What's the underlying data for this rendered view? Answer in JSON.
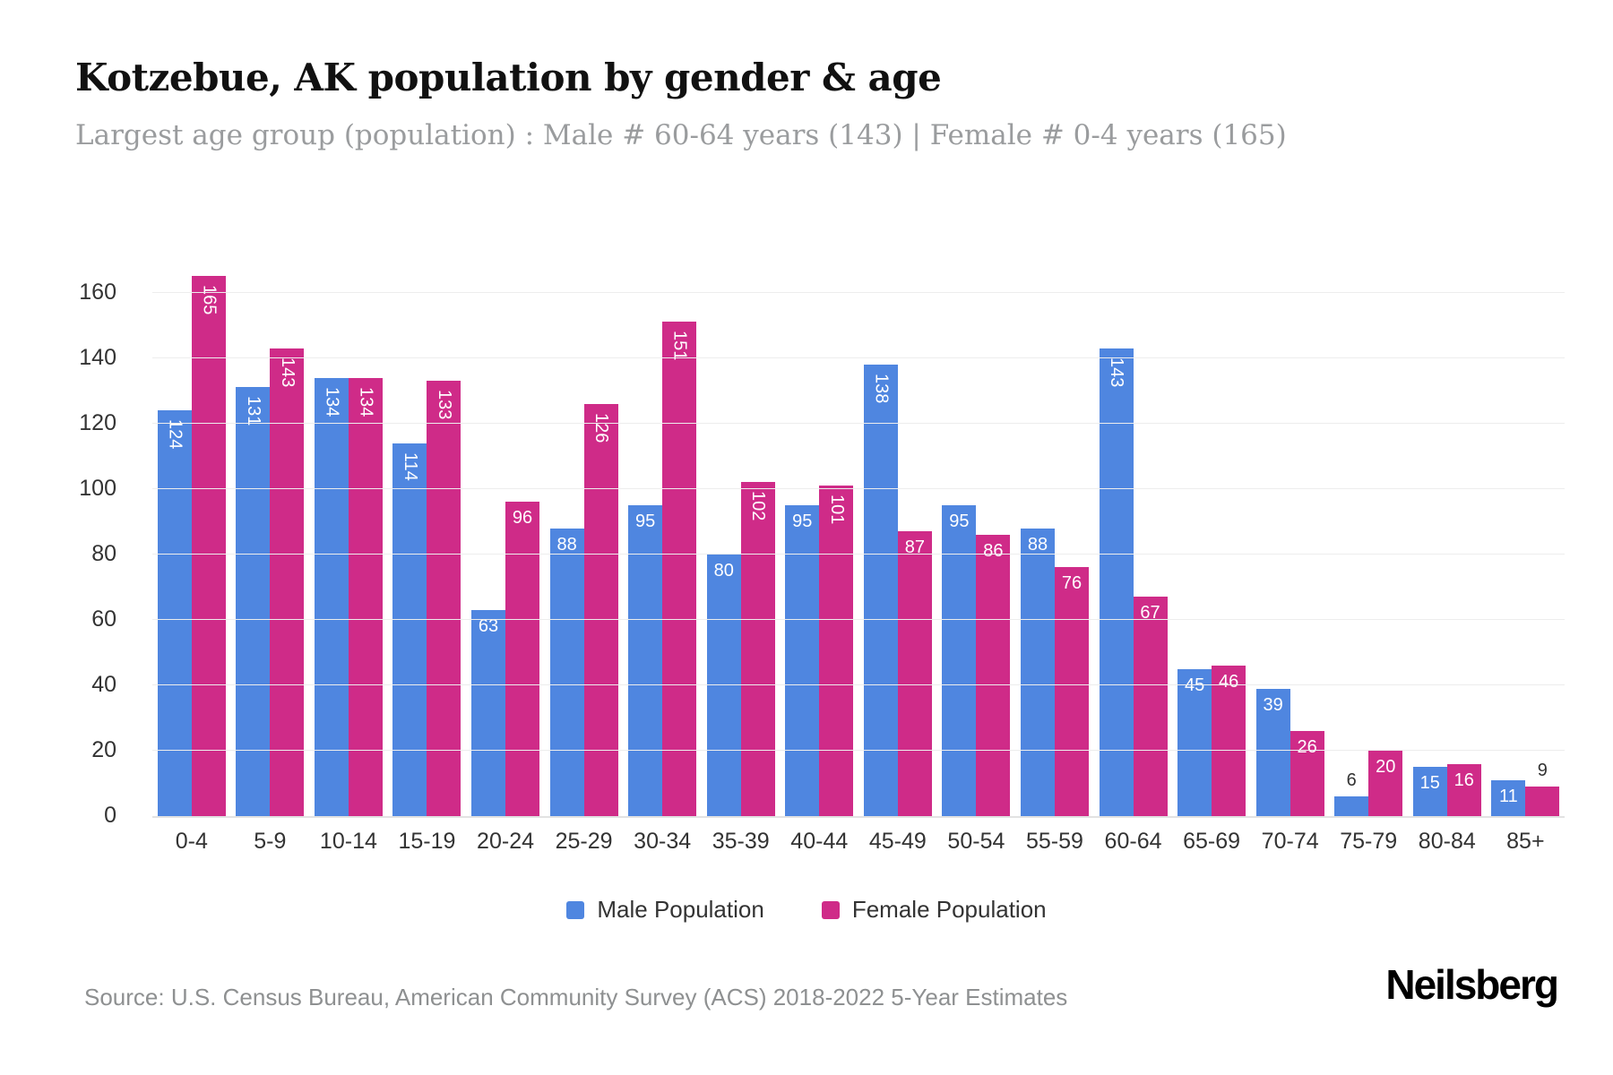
{
  "title": "Kotzebue, AK population by gender & age",
  "subtitle": "Largest age group (population) : Male # 60-64 years (143) | Female # 0-4 years (165)",
  "source": "Source: U.S. Census Bureau, American Community Survey (ACS) 2018-2022 5-Year Estimates",
  "brand": "Neilsberg",
  "colors": {
    "male": "#4f86e0",
    "female": "#cf2b88",
    "grid": "#ededed",
    "axis_text": "#333333"
  },
  "legend": {
    "items": [
      {
        "label": "Male Population",
        "color": "#4f86e0"
      },
      {
        "label": "Female Population",
        "color": "#cf2b88"
      }
    ]
  },
  "chart_data": {
    "type": "bar",
    "title": "Kotzebue, AK population by gender & age",
    "xlabel": "",
    "ylabel": "",
    "categories": [
      "0-4",
      "5-9",
      "10-14",
      "15-19",
      "20-24",
      "25-29",
      "30-34",
      "35-39",
      "40-44",
      "45-49",
      "50-54",
      "55-59",
      "60-64",
      "65-69",
      "70-74",
      "75-79",
      "80-84",
      "85+"
    ],
    "series": [
      {
        "name": "Male Population",
        "color": "#4f86e0",
        "values": [
          124,
          131,
          134,
          114,
          63,
          88,
          95,
          80,
          95,
          138,
          95,
          88,
          143,
          45,
          39,
          6,
          15,
          11
        ]
      },
      {
        "name": "Female Population",
        "color": "#cf2b88",
        "values": [
          165,
          143,
          134,
          133,
          96,
          126,
          151,
          102,
          101,
          87,
          86,
          76,
          67,
          46,
          26,
          20,
          16,
          9
        ]
      }
    ],
    "ylim": [
      0,
      170
    ],
    "yticks": [
      0,
      20,
      40,
      60,
      80,
      100,
      120,
      140,
      160
    ],
    "grid": true,
    "legend_position": "bottom"
  }
}
